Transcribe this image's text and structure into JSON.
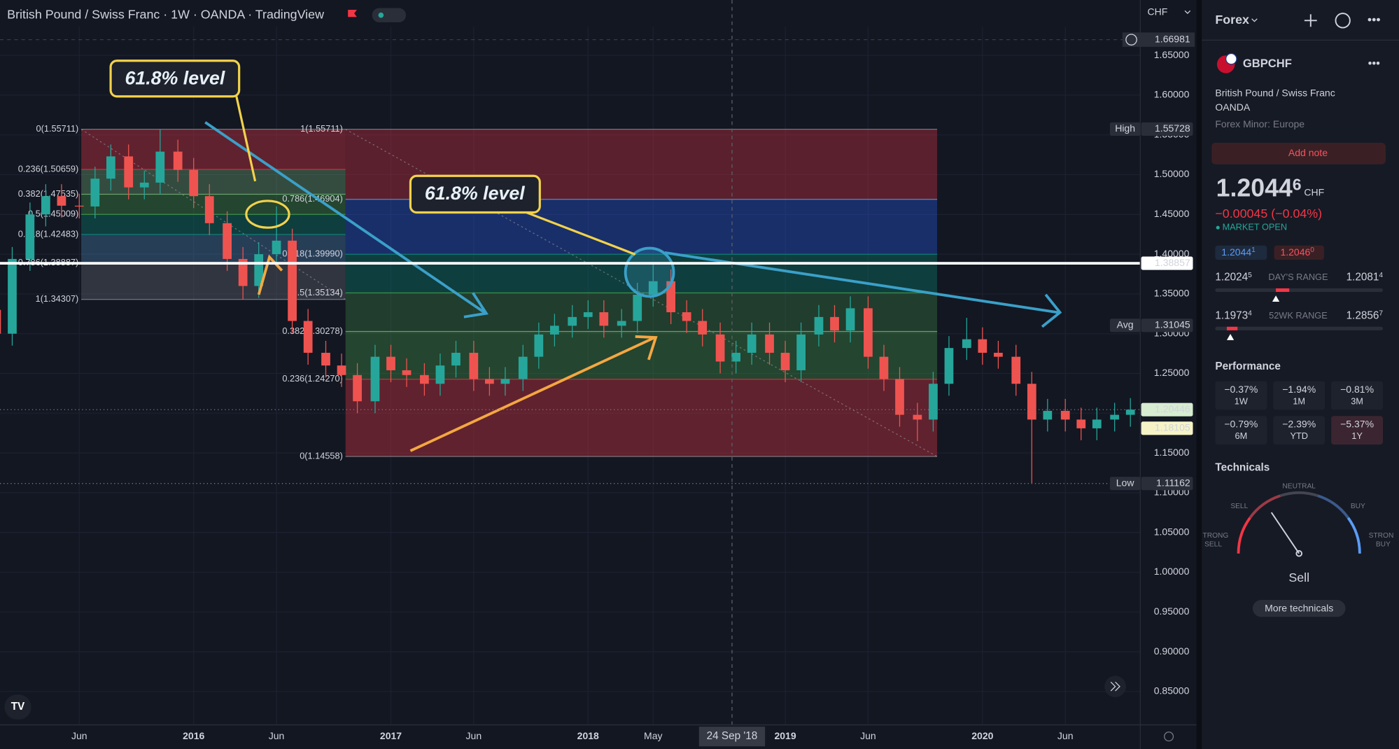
{
  "header": {
    "title": "British Pound / Swiss Franc · 1W · OANDA · TradingView",
    "currency": "CHF"
  },
  "chart_data": {
    "type": "candlestick",
    "xlim": [
      2015.018,
      2020.8
    ],
    "ylim": [
      0.808,
      1.686
    ],
    "grid": true,
    "xticks": [
      {
        "value": 2015.42,
        "label": "Jun"
      },
      2016,
      {
        "value": 2016.42,
        "label": "Jun"
      },
      2017,
      {
        "value": 2017.42,
        "label": "Jun"
      },
      2018,
      {
        "value": 2018.33,
        "label": "May"
      },
      2019,
      {
        "value": 2019.42,
        "label": "Jun"
      },
      2020,
      {
        "value": 2020.42,
        "label": "Jun"
      }
    ],
    "yticks": [
      {
        "value": 0.85,
        "label": "0.85000"
      },
      {
        "value": 0.9,
        "label": "0.90000"
      },
      {
        "value": 0.95,
        "label": "0.95000"
      },
      {
        "value": 1,
        "label": "1.00000"
      },
      {
        "value": 1.05,
        "label": "1.05000"
      },
      {
        "value": 1.1,
        "label": "1.10000"
      },
      {
        "value": 1.15,
        "label": "1.15000"
      },
      {
        "value": 1.2,
        "label": "1.20000"
      },
      {
        "value": 1.25,
        "label": "1.25000"
      },
      {
        "value": 1.3,
        "label": "1.30000"
      },
      {
        "value": 1.35,
        "label": "1.35000"
      },
      {
        "value": 1.4,
        "label": "1.40000"
      },
      {
        "value": 1.45,
        "label": "1.45000"
      },
      {
        "value": 1.5,
        "label": "1.50000"
      },
      {
        "value": 1.55,
        "label": "1.55000"
      },
      {
        "value": 1.6,
        "label": "1.60000"
      },
      {
        "value": 1.65,
        "label": "1.65000"
      }
    ],
    "up_color": "#26a69a",
    "down_color": "#ef5350",
    "candles": {
      "x": [
        2015,
        2015.08,
        2015.17,
        2015.25,
        2015.33,
        2015.42,
        2015.5,
        2015.58,
        2015.67,
        2015.75,
        2015.83,
        2015.92,
        2016,
        2016.08,
        2016.17,
        2016.25,
        2016.33,
        2016.42,
        2016.5,
        2016.58,
        2016.67,
        2016.75,
        2016.83,
        2016.92,
        2017,
        2017.08,
        2017.17,
        2017.25,
        2017.33,
        2017.42,
        2017.5,
        2017.58,
        2017.67,
        2017.75,
        2017.83,
        2017.92,
        2018,
        2018.08,
        2018.17,
        2018.25,
        2018.33,
        2018.42,
        2018.5,
        2018.58,
        2018.67,
        2018.75,
        2018.83,
        2018.92,
        2019,
        2019.08,
        2019.17,
        2019.25,
        2019.33,
        2019.42,
        2019.5,
        2019.58,
        2019.67,
        2019.75,
        2019.83,
        2019.92,
        2020,
        2020.08,
        2020.17,
        2020.25,
        2020.33,
        2020.42,
        2020.5,
        2020.58,
        2020.67,
        2020.75
      ],
      "open": [
        1.33,
        1.3,
        1.394,
        1.45,
        1.473,
        1.461,
        1.46,
        1.495,
        1.523,
        1.484,
        1.49,
        1.529,
        1.506,
        1.473,
        1.439,
        1.394,
        1.36,
        1.4,
        1.417,
        1.316,
        1.276,
        1.26,
        1.248,
        1.215,
        1.271,
        1.254,
        1.248,
        1.237,
        1.26,
        1.276,
        1.243,
        1.237,
        1.243,
        1.271,
        1.299,
        1.31,
        1.321,
        1.327,
        1.31,
        1.316,
        1.349,
        1.366,
        1.327,
        1.316,
        1.299,
        1.265,
        1.276,
        1.299,
        1.276,
        1.254,
        1.299,
        1.321,
        1.304,
        1.332,
        1.271,
        1.243,
        1.198,
        1.192,
        1.237,
        1.282,
        1.293,
        1.276,
        1.271,
        1.237,
        1.192,
        1.203,
        1.192,
        1.181,
        1.192,
        1.198
      ],
      "high": [
        1.345,
        1.409,
        1.465,
        1.488,
        1.488,
        1.476,
        1.51,
        1.538,
        1.538,
        1.505,
        1.557,
        1.544,
        1.521,
        1.488,
        1.454,
        1.409,
        1.415,
        1.46,
        1.432,
        1.331,
        1.291,
        1.275,
        1.263,
        1.286,
        1.286,
        1.269,
        1.263,
        1.275,
        1.291,
        1.291,
        1.258,
        1.258,
        1.286,
        1.314,
        1.325,
        1.336,
        1.342,
        1.342,
        1.331,
        1.364,
        1.39,
        1.381,
        1.342,
        1.331,
        1.314,
        1.291,
        1.314,
        1.314,
        1.291,
        1.314,
        1.336,
        1.336,
        1.347,
        1.347,
        1.286,
        1.258,
        1.213,
        1.252,
        1.297,
        1.32,
        1.308,
        1.291,
        1.286,
        1.252,
        1.218,
        1.218,
        1.207,
        1.207,
        1.213,
        1.219
      ],
      "low": [
        1.285,
        1.285,
        1.379,
        1.435,
        1.446,
        1.445,
        1.445,
        1.48,
        1.469,
        1.469,
        1.475,
        1.491,
        1.458,
        1.424,
        1.379,
        1.343,
        1.345,
        1.385,
        1.301,
        1.261,
        1.245,
        1.233,
        1.2,
        1.2,
        1.239,
        1.233,
        1.222,
        1.222,
        1.245,
        1.228,
        1.222,
        1.222,
        1.228,
        1.256,
        1.284,
        1.295,
        1.306,
        1.295,
        1.295,
        1.301,
        1.334,
        1.312,
        1.301,
        1.284,
        1.25,
        1.25,
        1.261,
        1.261,
        1.239,
        1.239,
        1.284,
        1.289,
        1.289,
        1.256,
        1.228,
        1.183,
        1.165,
        1.177,
        1.222,
        1.267,
        1.261,
        1.256,
        1.222,
        1.112,
        1.177,
        1.177,
        1.166,
        1.166,
        1.177,
        1.183
      ],
      "close": [
        1.3,
        1.394,
        1.45,
        1.473,
        1.461,
        1.46,
        1.495,
        1.523,
        1.484,
        1.49,
        1.529,
        1.506,
        1.473,
        1.439,
        1.394,
        1.36,
        1.4,
        1.417,
        1.316,
        1.276,
        1.26,
        1.248,
        1.215,
        1.271,
        1.254,
        1.248,
        1.237,
        1.26,
        1.276,
        1.243,
        1.237,
        1.243,
        1.271,
        1.299,
        1.31,
        1.321,
        1.327,
        1.31,
        1.316,
        1.349,
        1.366,
        1.327,
        1.316,
        1.299,
        1.265,
        1.276,
        1.299,
        1.276,
        1.254,
        1.299,
        1.321,
        1.304,
        1.332,
        1.271,
        1.243,
        1.198,
        1.192,
        1.237,
        1.282,
        1.293,
        1.276,
        1.271,
        1.237,
        1.192,
        1.203,
        1.192,
        1.181,
        1.192,
        1.198,
        1.2045
      ]
    },
    "fibs": [
      {
        "x": [
          2015.43,
          2016.77
        ],
        "levels": [
          {
            "value": 1.55711,
            "label": "0(1.55711)",
            "color": "#9598a1"
          },
          {
            "value": 1.50659,
            "label": "0.236(1.50659)",
            "color": "#f23645"
          },
          {
            "value": 1.47535,
            "label": "0.382(1.47535)",
            "color": "#81c784"
          },
          {
            "value": 1.45009,
            "label": "0.5(1.45009)",
            "color": "#4caf50"
          },
          {
            "value": 1.42483,
            "label": "0.618(1.42483)",
            "color": "#089981"
          },
          {
            "value": 1.38887,
            "label": "0.786(1.38887)",
            "color": "#64b5f6"
          },
          {
            "value": 1.34307,
            "label": "1(1.34307)",
            "color": "#9598a1"
          }
        ],
        "band_colors": [
          "rgba(242,54,69,0.35)",
          "rgba(129,199,132,0.3)",
          "rgba(76,175,80,0.3)",
          "rgba(8,153,129,0.3)",
          "rgba(100,181,246,0.25)",
          "rgba(120,123,134,0.3)"
        ]
      },
      {
        "x": [
          2016.77,
          2019.77
        ],
        "levels": [
          {
            "value": 1.55711,
            "label": "1(1.55711)",
            "color": "#9598a1"
          },
          {
            "value": 1.46904,
            "label": "0.786(1.46904)",
            "color": "#64b5f6"
          },
          {
            "value": 1.3999,
            "label": "0.618(1.39990)",
            "color": "#089981"
          },
          {
            "value": 1.35134,
            "label": "0.5(1.35134)",
            "color": "#4caf50"
          },
          {
            "value": 1.30278,
            "label": "0.382(1.30278)",
            "color": "#81c784"
          },
          {
            "value": 1.2427,
            "label": "0.236(1.24270)",
            "color": "#f23645"
          },
          {
            "value": 1.14558,
            "label": "0(1.14558)",
            "color": "#9598a1"
          }
        ],
        "band_colors": [
          "rgba(242,54,69,0.32)",
          "rgba(41,98,255,0.32)",
          "rgba(8,153,129,0.3)",
          "rgba(76,175,80,0.25)",
          "rgba(76,175,80,0.3)",
          "rgba(242,54,69,0.35)"
        ]
      }
    ],
    "price_tags": [
      {
        "name": "High",
        "value": 1.55728,
        "bg": "#2a2e39",
        "fg": "#d1d4dc"
      },
      {
        "value": 1.38857,
        "bg": "#ffffff",
        "fg": "#131722",
        "line": "solid"
      },
      {
        "name": "Avg",
        "value": 1.31045,
        "bg": "#2a2e39",
        "fg": "#d1d4dc"
      },
      {
        "value": 1.20446,
        "bg": "#d7ecd0",
        "fg": "#131722",
        "line": "dotted"
      },
      {
        "value": 1.18105,
        "bg": "#f6f4c7",
        "fg": "#131722"
      },
      {
        "name": "Low",
        "value": 1.11162,
        "bg": "#2a2e39",
        "fg": "#d1d4dc",
        "line": "dotted"
      }
    ],
    "crosshair": {
      "price": 1.66981,
      "date": 2018.73,
      "date_label": "24 Sep '18"
    },
    "annotations": [
      "61.8% level",
      "61.8% level"
    ]
  },
  "sidebar": {
    "watchlist": "Forex",
    "symbol": "GBPCHF",
    "description": "British Pound / Swiss Franc",
    "exchange": "OANDA",
    "category": "Forex Minor: Europe",
    "add_note": "Add note",
    "price": {
      "main": "1.2044",
      "pip": "6",
      "currency": "CHF"
    },
    "change": "−0.00045 (−0.04%)",
    "status": "MARKET OPEN",
    "bid": {
      "main": "1.2044",
      "pip": "1"
    },
    "ask": {
      "main": "1.2046",
      "pip": "0"
    },
    "days_range": {
      "label": "DAY'S RANGE",
      "low": {
        "main": "1.2024",
        "pip": "5"
      },
      "high": {
        "main": "1.2081",
        "pip": "4"
      }
    },
    "week52_range": {
      "label": "52WK RANGE",
      "low": {
        "main": "1.1973",
        "pip": "4"
      },
      "high": {
        "main": "1.2856",
        "pip": "7"
      }
    },
    "performance": {
      "title": "Performance",
      "items": [
        {
          "value": "−0.37%",
          "period": "1W"
        },
        {
          "value": "−1.94%",
          "period": "1M"
        },
        {
          "value": "−0.81%",
          "period": "3M"
        },
        {
          "value": "−0.79%",
          "period": "6M"
        },
        {
          "value": "−2.39%",
          "period": "YTD"
        },
        {
          "value": "−5.37%",
          "period": "1Y"
        }
      ]
    },
    "technicals": {
      "title": "Technicals",
      "strong_sell": [
        "TRONG",
        "SELL"
      ],
      "sell": "SELL",
      "neutral": "NEUTRAL",
      "buy": "BUY",
      "strong_buy": [
        "STRON",
        "BUY"
      ],
      "rating": "Sell",
      "button": "More technicals"
    }
  }
}
